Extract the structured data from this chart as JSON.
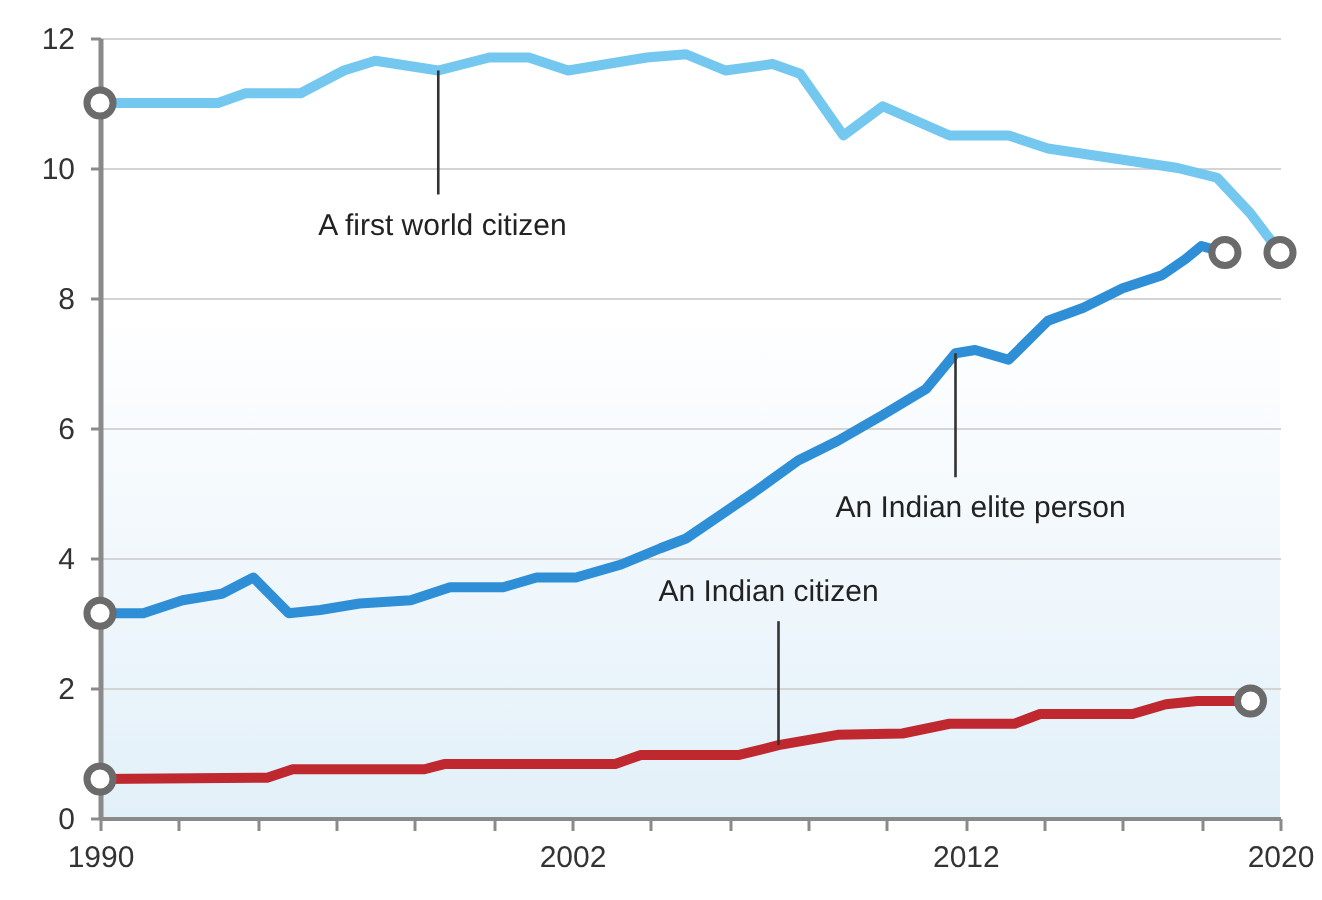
{
  "chart_data": {
    "type": "line",
    "xlim": [
      1990,
      2020
    ],
    "xticks": [
      1990,
      {
        "value": 1992,
        "label": null
      },
      {
        "value": 1994,
        "label": null
      },
      {
        "value": 1996,
        "label": null
      },
      {
        "value": 1998,
        "label": null
      },
      {
        "value": 2000,
        "label": null
      },
      2002,
      {
        "value": 2004,
        "label": null
      },
      {
        "value": 2006,
        "label": null
      },
      {
        "value": 2008,
        "label": null
      },
      {
        "value": 2010,
        "label": null
      },
      2012,
      {
        "value": 2014,
        "label": null
      },
      {
        "value": 2016,
        "label": null
      },
      {
        "value": 2018,
        "label": null
      },
      2020
    ],
    "ylim": [
      0,
      12
    ],
    "yticks": [
      0,
      2,
      4,
      6,
      8,
      10,
      12
    ],
    "grid": "y",
    "line_style": "solid",
    "series": [
      {
        "color": "#74c8ef",
        "x": [
          1990,
          1993,
          1993.7,
          1995.1,
          1996.2,
          1997,
          1998.6,
          1999.9,
          2000.9,
          2001.9,
          2003.9,
          2004.9,
          2005.9,
          2007.1,
          2007.8,
          2008.9,
          2009.9,
          2011.6,
          2013.1,
          2014.1,
          2017.4,
          2018.4,
          2019.25,
          2020
        ],
        "values": [
          11.0,
          11.0,
          11.15,
          11.15,
          11.5,
          11.65,
          11.5,
          11.7,
          11.7,
          11.5,
          11.7,
          11.75,
          11.5,
          11.6,
          11.45,
          10.5,
          10.95,
          10.5,
          10.5,
          10.3,
          10.0,
          9.85,
          9.3,
          8.7
        ]
      },
      {
        "color": "#2e8fd6",
        "x": [
          1990,
          1991.1,
          1992.1,
          1993.1,
          1993.9,
          1994.8,
          1995.6,
          1996.6,
          1997.9,
          1998.9,
          2000.25,
          2001.1,
          2002.1,
          2003.25,
          2004.25,
          2004.9,
          2006.6,
          2007.75,
          2008.75,
          2009.9,
          2011,
          2011.75,
          2012.25,
          2013.1,
          2014.1,
          2015,
          2016,
          2017,
          2017.6,
          2018,
          2018.6
        ],
        "values": [
          3.15,
          3.15,
          3.35,
          3.45,
          3.7,
          3.15,
          3.2,
          3.3,
          3.35,
          3.55,
          3.55,
          3.7,
          3.7,
          3.9,
          4.15,
          4.3,
          5.0,
          5.5,
          5.8,
          6.2,
          6.6,
          7.15,
          7.2,
          7.05,
          7.65,
          7.85,
          8.15,
          8.35,
          8.6,
          8.8,
          8.7
        ]
      },
      {
        "color": "#c0282f",
        "x": [
          1990,
          1994.25,
          1994.9,
          1998.25,
          1998.75,
          2003.1,
          2003.75,
          2006.25,
          2007.25,
          2008.75,
          2010.4,
          2011.6,
          2013.25,
          2013.9,
          2016.25,
          2017.1,
          2017.9,
          2019.25
        ],
        "values": [
          0.6,
          0.62,
          0.75,
          0.75,
          0.83,
          0.83,
          0.97,
          0.97,
          1.12,
          1.28,
          1.3,
          1.45,
          1.45,
          1.6,
          1.6,
          1.75,
          1.8,
          1.8
        ]
      },
      {
        "type": "scatter",
        "color": "#6b6b6b",
        "x": [
          1990,
          2020,
          1990,
          2018.6,
          1990,
          2019.25
        ],
        "values": [
          11.0,
          8.7,
          3.15,
          8.7,
          0.6,
          1.8
        ]
      }
    ],
    "annotations": [
      {
        "text": "A first world citizen",
        "x": 1998.6,
        "y": 11.5
      },
      {
        "text": "An Indian elite person",
        "x": 2011.75,
        "y": 7.15
      },
      {
        "text": "An Indian citizen",
        "x": 2007.25,
        "y": 1.12
      }
    ]
  }
}
